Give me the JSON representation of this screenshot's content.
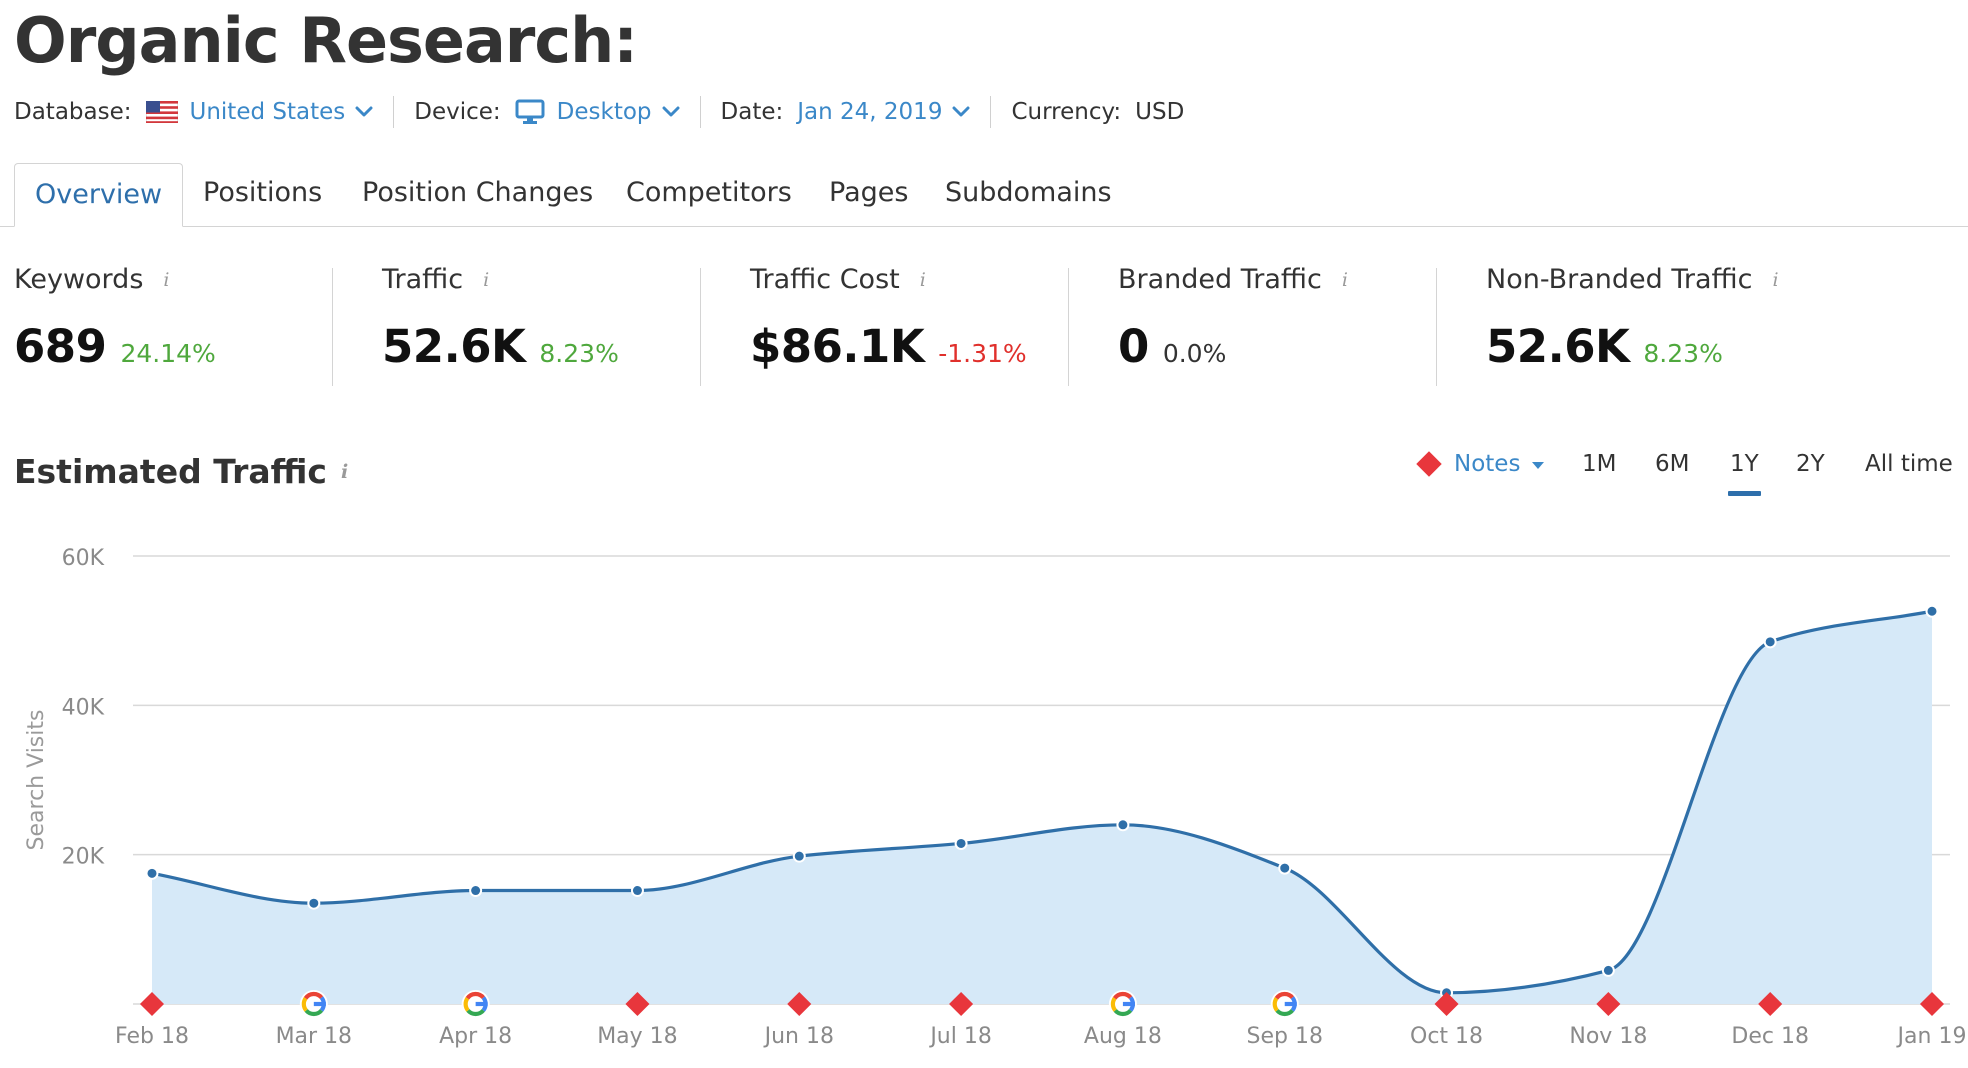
{
  "page": {
    "title": "Organic Research:"
  },
  "filters": {
    "database_label": "Database:",
    "database_value": "United States",
    "device_label": "Device:",
    "device_value": "Desktop",
    "date_label": "Date:",
    "date_value": "Jan 24, 2019",
    "currency_label": "Currency:",
    "currency_value": "USD"
  },
  "tabs": [
    {
      "label": "Overview",
      "active": true
    },
    {
      "label": "Positions",
      "active": false
    },
    {
      "label": "Position Changes",
      "active": false
    },
    {
      "label": "Competitors",
      "active": false
    },
    {
      "label": "Pages",
      "active": false
    },
    {
      "label": "Subdomains",
      "active": false
    }
  ],
  "metrics": [
    {
      "label": "Keywords",
      "value": "689",
      "change": "24.14%",
      "trend": "up"
    },
    {
      "label": "Traffic",
      "value": "52.6K",
      "change": "8.23%",
      "trend": "up"
    },
    {
      "label": "Traffic Cost",
      "value": "$86.1K",
      "change": "-1.31%",
      "trend": "down"
    },
    {
      "label": "Branded Traffic",
      "value": "0",
      "change": "0.0%",
      "trend": "neutral"
    },
    {
      "label": "Non-Branded Traffic",
      "value": "52.6K",
      "change": "8.23%",
      "trend": "up"
    }
  ],
  "info_glyph": "i",
  "estimated_traffic": {
    "title": "Estimated Traffic",
    "notes_label": "Notes",
    "ranges": [
      {
        "label": "1M",
        "active": false
      },
      {
        "label": "6M",
        "active": false
      },
      {
        "label": "1Y",
        "active": true
      },
      {
        "label": "2Y",
        "active": false
      },
      {
        "label": "All time",
        "active": false
      }
    ]
  },
  "colors": {
    "accent_blue": "#3b88c8",
    "line_blue": "#2f6fa8",
    "area_fill": "#d6e9f8",
    "positive": "#4fa83d",
    "negative": "#e0302c",
    "note_marker": "#e8363c",
    "google_blue": "#4285f4",
    "google_red": "#ea4335",
    "google_yellow": "#fbbc05",
    "google_green": "#34a853"
  },
  "chart_data": {
    "type": "area",
    "title": "",
    "xlabel": "",
    "ylabel": "Search Visits",
    "x": [
      "Feb 18",
      "Mar 18",
      "Apr 18",
      "May 18",
      "Jun 18",
      "Jul 18",
      "Aug 18",
      "Sep 18",
      "Oct 18",
      "Nov 18",
      "Dec 18",
      "Jan 19"
    ],
    "series": [
      {
        "values": [
          17500,
          13500,
          15200,
          15200,
          19800,
          21500,
          24000,
          18200,
          1500,
          4500,
          48500,
          52600
        ]
      }
    ],
    "ylim": [
      0,
      60000
    ],
    "yticks": [
      20000,
      40000,
      60000
    ],
    "ytick_labels": [
      "20K",
      "40K",
      "60K"
    ],
    "grid": true,
    "markers": [
      "note",
      "google",
      "google",
      "note",
      "note",
      "note",
      "google",
      "google",
      "note",
      "note",
      "note",
      "note"
    ]
  }
}
